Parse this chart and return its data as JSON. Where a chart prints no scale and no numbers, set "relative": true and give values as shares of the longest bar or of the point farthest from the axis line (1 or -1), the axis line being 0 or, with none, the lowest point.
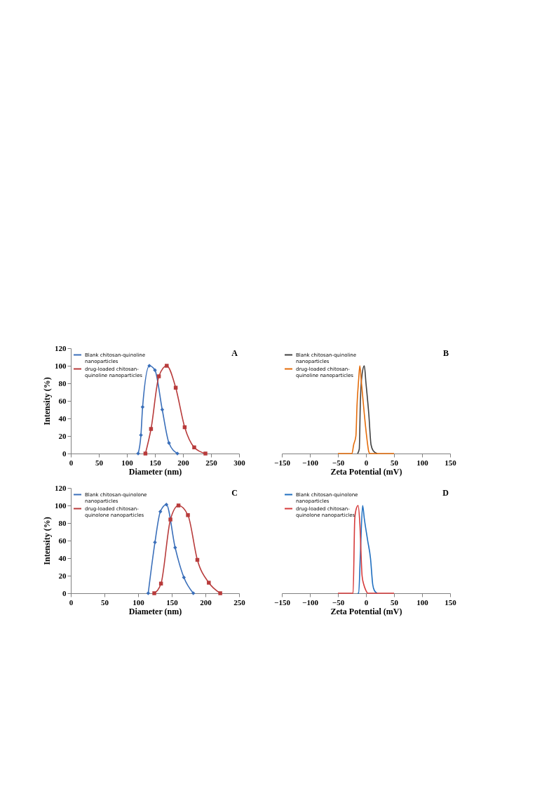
{
  "chart_data": [
    {
      "type": "line",
      "xlabel": "Diameter (nm)",
      "ylabel": "Intensity (%)",
      "annotations": [
        "A"
      ],
      "xlim": [
        0,
        300
      ],
      "xticks": [
        0,
        50,
        100,
        150,
        200,
        250,
        300
      ],
      "ylim": [
        0,
        120
      ],
      "yticks": [
        0,
        20,
        40,
        60,
        80,
        100,
        120
      ],
      "grid": false,
      "legend": "top left",
      "series": [
        {
          "name": "Blank chitosan-quinoline nanoparticles",
          "color": "#3a6fba",
          "marker": "diamond",
          "x": [
            120,
            125,
            128,
            140,
            150,
            163,
            175,
            190
          ],
          "values": [
            0,
            21,
            53,
            100,
            95,
            50,
            12,
            0
          ]
        },
        {
          "name": "drug-loaded chitosan-quinoline nanoparticles",
          "color": "#b83b3b",
          "marker": "square",
          "x": [
            133,
            143,
            157,
            171,
            187,
            203,
            220,
            240
          ],
          "values": [
            0,
            28,
            88,
            100,
            75,
            30,
            7,
            0
          ]
        }
      ]
    },
    {
      "type": "line",
      "xlabel": "Zeta Potential (mV)",
      "annotations": [
        "B"
      ],
      "relative": true,
      "xlim": [
        -150,
        150
      ],
      "xticks": [
        -150,
        -100,
        -50,
        0,
        50,
        100,
        150
      ],
      "grid": false,
      "legend": "top left",
      "marker": "none",
      "series": [
        {
          "name": "Blank chitosan-quinoline nanoparticles",
          "color": "#404040",
          "x": [
            -15,
            -12,
            -10,
            -7,
            -3,
            0,
            5,
            9,
            13,
            20
          ],
          "values": [
            0,
            0.05,
            0.6,
            0.9,
            1.0,
            0.8,
            0.45,
            0.1,
            0.03,
            0
          ]
        },
        {
          "name": "drug-loaded chitosan-quinoline nanoparticles",
          "color": "#e46c0a",
          "x": [
            -50,
            -25,
            -22,
            -18,
            -16,
            -13,
            -11,
            -8,
            -3,
            2,
            5,
            7,
            50
          ],
          "values": [
            0,
            0,
            0.1,
            0.2,
            0.55,
            0.85,
            1.0,
            0.8,
            0.45,
            0.15,
            0.02,
            0,
            0
          ]
        }
      ]
    },
    {
      "type": "line",
      "xlabel": "Diameter (nm)",
      "ylabel": "Intensity (%)",
      "annotations": [
        "C"
      ],
      "xlim": [
        0,
        250
      ],
      "xticks": [
        0,
        50,
        100,
        150,
        200,
        250
      ],
      "ylim": [
        0,
        120
      ],
      "yticks": [
        0,
        20,
        40,
        60,
        80,
        100,
        120
      ],
      "grid": false,
      "legend": "top left",
      "series": [
        {
          "name": "Blank chitosan-quinolone nanoparticles",
          "color": "#3a6fba",
          "marker": "diamond",
          "x": [
            115,
            125,
            133,
            142,
            155,
            168,
            182
          ],
          "values": [
            0,
            58,
            93,
            101,
            52,
            18,
            0
          ]
        },
        {
          "name": "drug-loaded chitosan-quinolone nanoparticles",
          "color": "#b83b3b",
          "marker": "square",
          "x": [
            124,
            134,
            148,
            160,
            174,
            188,
            205,
            222
          ],
          "values": [
            0,
            11,
            84,
            100,
            89,
            38,
            12,
            0
          ]
        }
      ]
    },
    {
      "type": "line",
      "xlabel": "Zeta Potential (mV)",
      "annotations": [
        "D"
      ],
      "relative": true,
      "xlim": [
        -150,
        150
      ],
      "xticks": [
        -150,
        -100,
        -50,
        0,
        50,
        100,
        150
      ],
      "grid": false,
      "legend": "top left",
      "marker": "none",
      "series": [
        {
          "name": "Blank chitosan-quinolone nanoparticles",
          "color": "#1f6fc0",
          "x": [
            -15,
            -13,
            -10,
            -6,
            -3,
            3,
            8,
            12,
            15,
            20
          ],
          "values": [
            0,
            0,
            0.45,
            1.0,
            0.85,
            0.6,
            0.4,
            0.1,
            0.03,
            0
          ]
        },
        {
          "name": "drug-loaded chitosan-quinolone nanoparticles",
          "color": "#d63b3b",
          "x": [
            -50,
            -23,
            -20,
            -17,
            -14,
            -11,
            -7,
            -4,
            0,
            3,
            50
          ],
          "values": [
            0,
            0,
            0.85,
            0.97,
            1.0,
            0.8,
            0.2,
            0.1,
            0.03,
            0,
            0
          ]
        }
      ]
    }
  ]
}
